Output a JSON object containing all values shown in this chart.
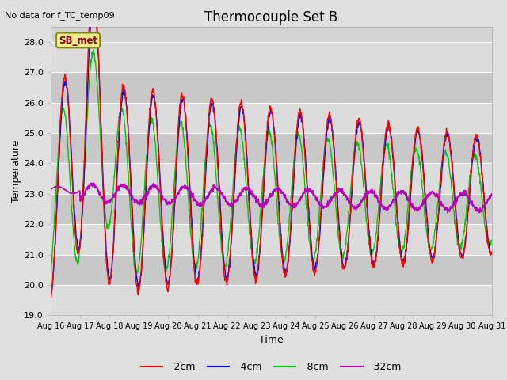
{
  "title": "Thermocouple Set B",
  "xlabel": "Time",
  "ylabel": "Temperature",
  "top_note": "No data for f_TC_temp09",
  "inset_label": "SB_met",
  "ylim": [
    19.0,
    28.5
  ],
  "yticks": [
    19.0,
    20.0,
    21.0,
    22.0,
    23.0,
    24.0,
    25.0,
    26.0,
    27.0,
    28.0
  ],
  "xtick_labels": [
    "Aug 16",
    "Aug 17",
    "Aug 18",
    "Aug 19",
    "Aug 20",
    "Aug 21",
    "Aug 22",
    "Aug 23",
    "Aug 24",
    "Aug 25",
    "Aug 26",
    "Aug 27",
    "Aug 28",
    "Aug 29",
    "Aug 30",
    "Aug 31"
  ],
  "colors": [
    "#ff0000",
    "#0000dd",
    "#00cc00",
    "#bb00bb"
  ],
  "legend_entries": [
    "-2cm",
    "-4cm",
    "-8cm",
    "-32cm"
  ],
  "fig_bg": "#e0e0e0",
  "axes_bg": "#d4d4d4",
  "band_light": "#dcdcdc",
  "band_dark": "#c8c8c8",
  "grid_color": "#ffffff"
}
